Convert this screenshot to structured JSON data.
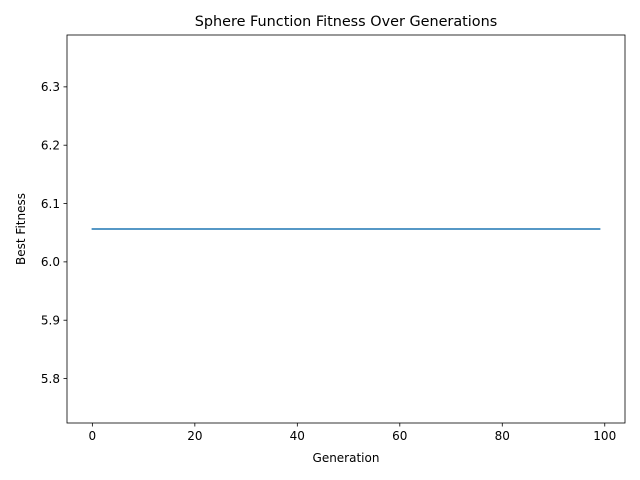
{
  "chart_data": {
    "type": "line",
    "title": "Sphere Function Fitness Over Generations",
    "xlabel": "Generation",
    "ylabel": "Best Fitness",
    "xlim": [
      -4.95,
      103.95
    ],
    "ylim": [
      5.7238,
      6.3889
    ],
    "xticks": [
      0,
      20,
      40,
      60,
      80,
      100
    ],
    "yticks": [
      5.8,
      5.9,
      6.0,
      6.1,
      6.2,
      6.3
    ],
    "ytick_labels": [
      "5.8",
      "5.9",
      "6.0",
      "6.1",
      "6.2",
      "6.3"
    ],
    "grid": false,
    "legend": false,
    "series": [
      {
        "color": "#1f77b4",
        "x_start": 0,
        "x_end": 99,
        "y_constant": 6.0563
      }
    ]
  }
}
